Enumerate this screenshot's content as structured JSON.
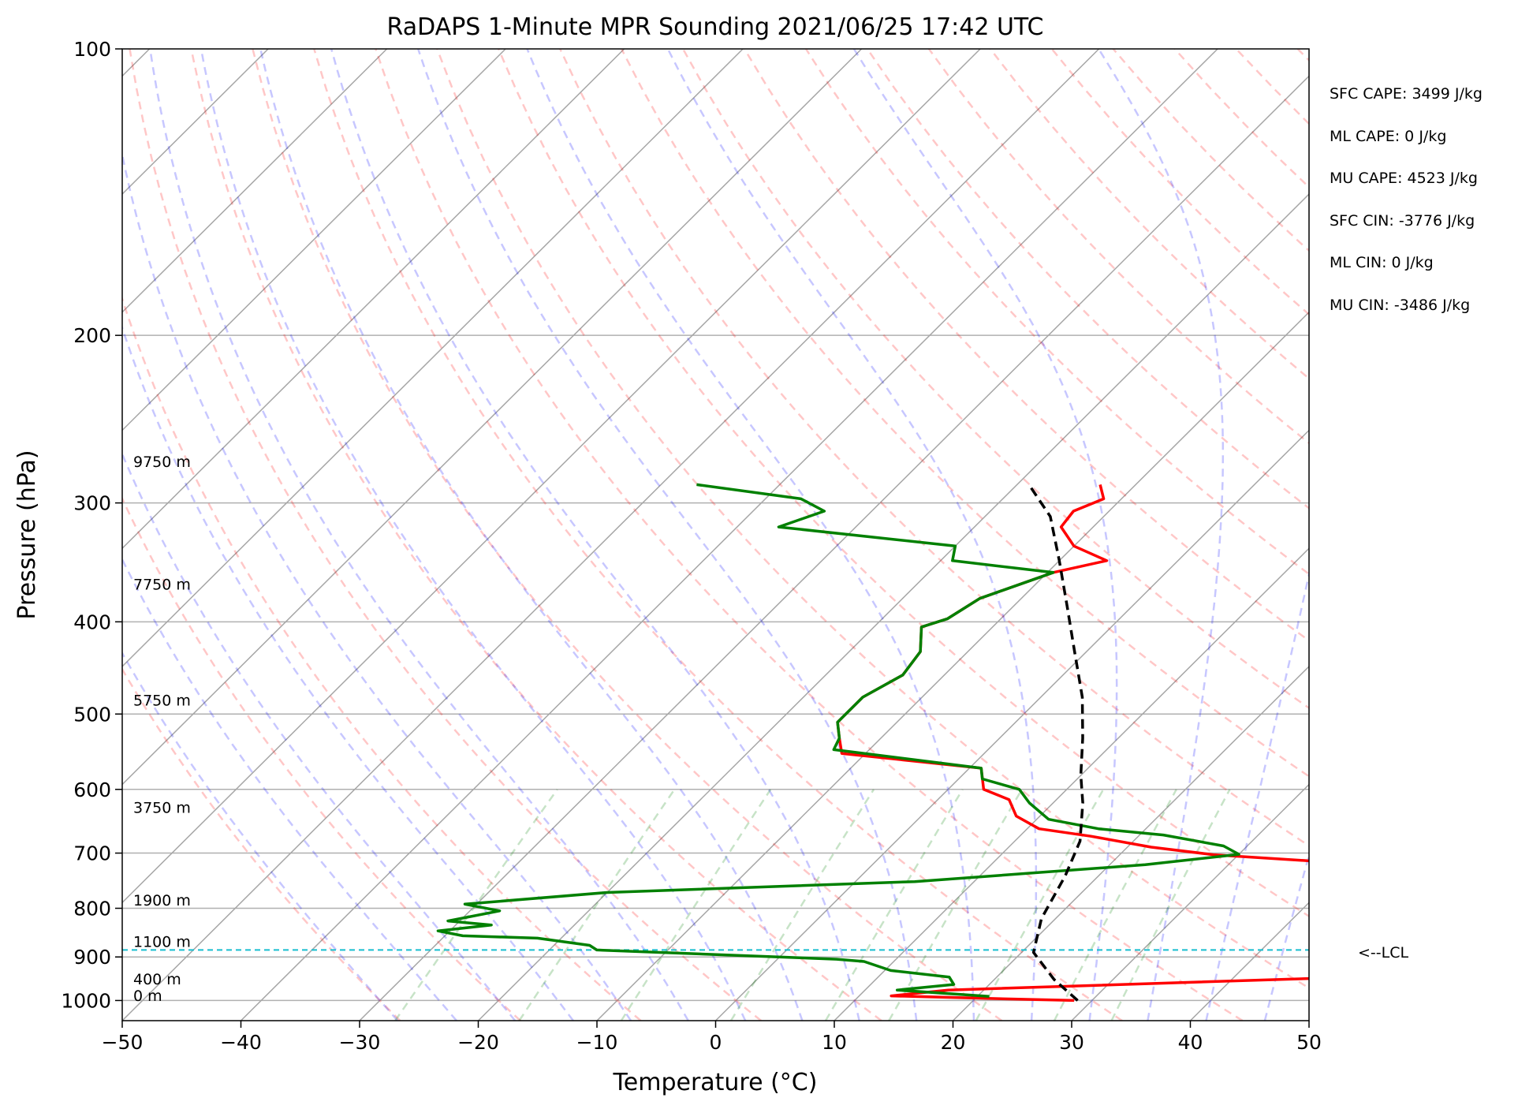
{
  "chart_data": {
    "type": "line",
    "title": "RaDAPS 1-Minute MPR Sounding 2021/06/25 17:42 UTC",
    "xlabel": "Temperature (°C)",
    "ylabel": "Pressure (hPa)",
    "xlim": [
      -50,
      50
    ],
    "ylim": [
      1050,
      100
    ],
    "y_scale": "log",
    "x_ticks": [
      "−50",
      "−40",
      "−30",
      "−20",
      "−10",
      "0",
      "10",
      "20",
      "30",
      "40",
      "50"
    ],
    "y_ticks": [
      "100",
      "200",
      "300",
      "400",
      "500",
      "600",
      "700",
      "800",
      "900",
      "1000"
    ],
    "grid": true,
    "height_labels": [
      {
        "text": "9750 m",
        "pressure": 275
      },
      {
        "text": "7750 m",
        "pressure": 370
      },
      {
        "text": "5750 m",
        "pressure": 490
      },
      {
        "text": "3750 m",
        "pressure": 635
      },
      {
        "text": "1900 m",
        "pressure": 795
      },
      {
        "text": "1100 m",
        "pressure": 878
      },
      {
        "text": "400 m",
        "pressure": 962
      },
      {
        "text": "0 m",
        "pressure": 1001
      }
    ],
    "lcl": {
      "pressure": 885,
      "label": "<--LCL"
    },
    "series": [
      {
        "role": "temperature",
        "color": "#ff0000",
        "points": [
          [
            -13,
            287
          ],
          [
            -11.5,
            297
          ],
          [
            -13,
            306
          ],
          [
            -12.7,
            318
          ],
          [
            -10,
            333
          ],
          [
            -6,
            345
          ],
          [
            -9.5,
            355
          ],
          [
            -13.5,
            378
          ],
          [
            -14.5,
            397
          ],
          [
            -16,
            405
          ],
          [
            -14,
            430
          ],
          [
            -13.5,
            455
          ],
          [
            -15,
            480
          ],
          [
            -15,
            510
          ],
          [
            -13.5,
            530
          ],
          [
            -12,
            550
          ],
          [
            1,
            570
          ],
          [
            3,
            600
          ],
          [
            6,
            615
          ],
          [
            8,
            640
          ],
          [
            11,
            660
          ],
          [
            16,
            672
          ],
          [
            22,
            690
          ],
          [
            28,
            703
          ],
          [
            38,
            715
          ],
          [
            50,
            748
          ],
          [
            50,
            945
          ],
          [
            17,
            975
          ],
          [
            12.7,
            989
          ],
          [
            21,
            995
          ],
          [
            28.5,
            1000
          ]
        ]
      },
      {
        "role": "dewpoint",
        "color": "#008000",
        "points": [
          [
            -47,
            287
          ],
          [
            -37,
            297
          ],
          [
            -34,
            306
          ],
          [
            -36.5,
            318
          ],
          [
            -20,
            333
          ],
          [
            -19,
            345
          ],
          [
            -9.5,
            355
          ],
          [
            -13.5,
            378
          ],
          [
            -14.5,
            397
          ],
          [
            -16,
            405
          ],
          [
            -14,
            430
          ],
          [
            -13.5,
            455
          ],
          [
            -15,
            480
          ],
          [
            -15,
            510
          ],
          [
            -13.5,
            530
          ],
          [
            -13,
            545
          ],
          [
            1,
            570
          ],
          [
            2,
            585
          ],
          [
            6,
            600
          ],
          [
            8,
            620
          ],
          [
            11,
            645
          ],
          [
            16,
            660
          ],
          [
            22,
            670
          ],
          [
            28,
            688
          ],
          [
            30,
            702
          ],
          [
            23,
            720
          ],
          [
            5,
            750
          ],
          [
            -20,
            770
          ],
          [
            -31,
            792
          ],
          [
            -27.5,
            805
          ],
          [
            -31,
            825
          ],
          [
            -27,
            833
          ],
          [
            -31,
            845
          ],
          [
            -28.5,
            855
          ],
          [
            -22,
            860
          ],
          [
            -17,
            875
          ],
          [
            -16,
            885
          ],
          [
            5,
            905
          ],
          [
            7.5,
            910
          ],
          [
            10.5,
            930
          ],
          [
            16,
            945
          ],
          [
            17,
            962
          ],
          [
            12.7,
            975
          ],
          [
            21,
            990
          ]
        ]
      },
      {
        "role": "parcel",
        "color": "#000000",
        "points": [
          [
            28.8,
            1000
          ],
          [
            25,
            950
          ],
          [
            21,
            890
          ],
          [
            18.8,
            820
          ],
          [
            17.2,
            740
          ],
          [
            15.5,
            680
          ],
          [
            12.5,
            620
          ],
          [
            10,
            580
          ],
          [
            7,
            530
          ],
          [
            3.5,
            480
          ],
          [
            -1,
            430
          ],
          [
            -5.5,
            385
          ],
          [
            -10,
            345
          ],
          [
            -14.5,
            310
          ],
          [
            -19,
            287
          ]
        ]
      }
    ]
  },
  "stats": [
    "SFC CAPE: 3499 J/kg",
    "ML CAPE: 0 J/kg",
    "MU CAPE: 4523 J/kg",
    "SFC CIN: -3776 J/kg",
    "ML CIN: 0 J/kg",
    "MU CIN: -3486 J/kg"
  ]
}
